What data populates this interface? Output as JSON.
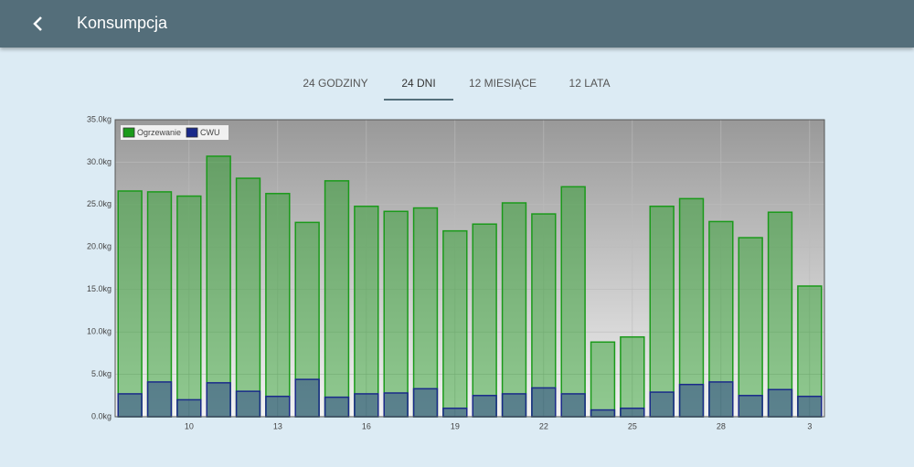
{
  "header": {
    "title": "Konsumpcja"
  },
  "tabs": {
    "items": [
      "24 GODZINY",
      "24 DNI",
      "12 MIESIĄCE",
      "12 LATA"
    ],
    "active": 1
  },
  "chart_data": {
    "type": "bar",
    "categories": [
      null,
      null,
      "10",
      null,
      null,
      "13",
      null,
      null,
      "16",
      null,
      null,
      "19",
      null,
      null,
      "22",
      null,
      null,
      "25",
      null,
      null,
      "28",
      null,
      null,
      "3"
    ],
    "series": [
      {
        "name": "Ogrzewanie",
        "color": "#1a9a1a",
        "values": [
          26.6,
          26.5,
          26.0,
          30.7,
          28.1,
          26.3,
          22.9,
          27.8,
          24.8,
          24.2,
          24.6,
          21.9,
          22.7,
          25.2,
          23.9,
          27.1,
          8.8,
          9.4,
          24.8,
          25.7,
          23.0,
          21.1,
          24.1,
          15.4
        ]
      },
      {
        "name": "CWU",
        "color": "#1a2a8a",
        "values": [
          2.7,
          4.1,
          2.0,
          4.0,
          3.0,
          2.4,
          4.4,
          2.3,
          2.7,
          2.8,
          3.3,
          1.0,
          2.5,
          2.7,
          3.4,
          2.7,
          0.8,
          1.0,
          2.9,
          3.8,
          4.1,
          2.5,
          3.2,
          2.4
        ]
      }
    ],
    "ylim": [
      0,
      35
    ],
    "yticks": [
      {
        "value": 0,
        "label": "0.0kg"
      },
      {
        "value": 5,
        "label": "5.0kg"
      },
      {
        "value": 10,
        "label": "10.0kg"
      },
      {
        "value": 15,
        "label": "15.0kg"
      },
      {
        "value": 20,
        "label": "20.0kg"
      },
      {
        "value": 25,
        "label": "25.0kg"
      },
      {
        "value": 30,
        "label": "30.0kg"
      },
      {
        "value": 35,
        "label": "35.0kg"
      }
    ],
    "grid": true,
    "legend": "top-left"
  }
}
